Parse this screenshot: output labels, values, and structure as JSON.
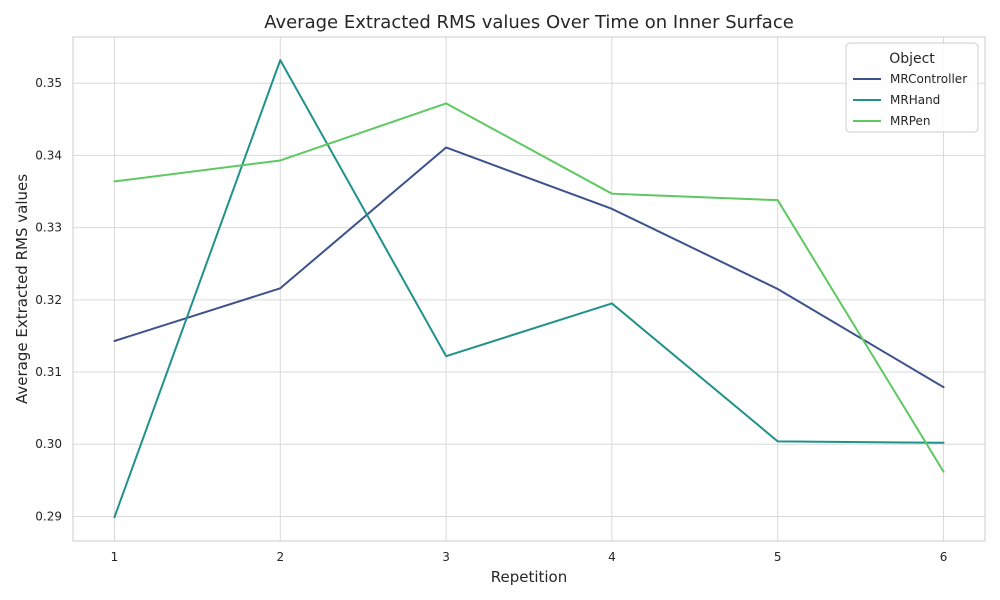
{
  "chart_data": {
    "type": "line",
    "title": "Average Extracted RMS values Over Time on Inner Surface",
    "xlabel": "Repetition",
    "ylabel": "Average Extracted RMS values",
    "x": [
      1,
      2,
      3,
      4,
      5,
      6
    ],
    "xticks": [
      "1",
      "2",
      "3",
      "4",
      "5",
      "6"
    ],
    "xlim": [
      0.75,
      6.25
    ],
    "yticks": [
      "0.29",
      "0.30",
      "0.31",
      "0.32",
      "0.33",
      "0.34",
      "0.35"
    ],
    "ylim": [
      0.2866,
      0.3564
    ],
    "grid": true,
    "legend": {
      "title": "Object",
      "placement": "top-right"
    },
    "series": [
      {
        "name": "MRController",
        "color": "#3b528b",
        "values": [
          0.3143,
          0.3216,
          0.3411,
          0.3326,
          0.3215,
          0.3079
        ]
      },
      {
        "name": "MRHand",
        "color": "#21918c",
        "values": [
          0.2899,
          0.3532,
          0.3122,
          0.3195,
          0.3004,
          0.3002
        ]
      },
      {
        "name": "MRPen",
        "color": "#5ec962",
        "values": [
          0.3364,
          0.3393,
          0.3472,
          0.3347,
          0.3338,
          0.2962
        ]
      }
    ]
  }
}
